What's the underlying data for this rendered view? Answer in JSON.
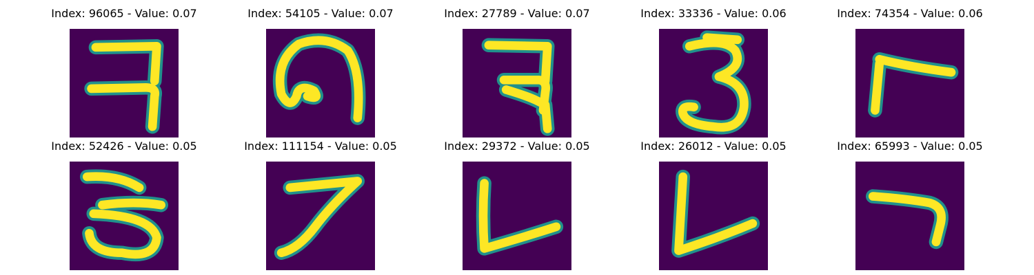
{
  "colors": {
    "background": "#440154",
    "stroke": "#fde725",
    "edge": "#21918c"
  },
  "images": [
    {
      "title": "Index: 96065 - Value: 0.07"
    },
    {
      "title": "Index: 54105 - Value: 0.07"
    },
    {
      "title": "Index: 27789 - Value: 0.07"
    },
    {
      "title": "Index: 33336 - Value: 0.06"
    },
    {
      "title": "Index: 74354 - Value: 0.06"
    },
    {
      "title": "Index: 52426 - Value: 0.05"
    },
    {
      "title": "Index: 111154 - Value: 0.05"
    },
    {
      "title": "Index: 29372 - Value: 0.05"
    },
    {
      "title": "Index: 26012 - Value: 0.05"
    },
    {
      "title": "Index: 65993 - Value: 0.05"
    }
  ]
}
